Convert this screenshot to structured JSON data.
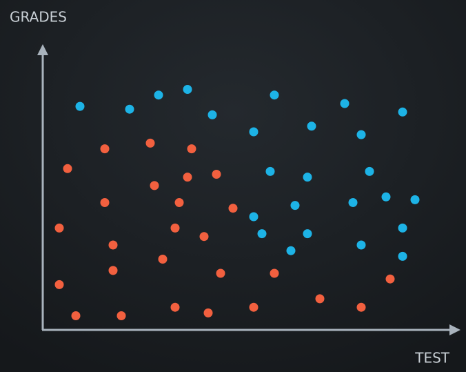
{
  "chart_data": {
    "type": "scatter",
    "xlabel": "TEST",
    "ylabel": "GRADES",
    "xlim": [
      0,
      10
    ],
    "ylim": [
      0,
      10
    ],
    "grid": false,
    "series": [
      {
        "color": "#1db3e6",
        "x": [
          0.9,
          2.1,
          2.8,
          3.5,
          4.1,
          5.6,
          5.1,
          6.5,
          7.3,
          8.7,
          7.7,
          5.5,
          6.4,
          7.9,
          6.1,
          7.5,
          8.3,
          9.0,
          5.1,
          5.3,
          6.4,
          6.0,
          7.7,
          8.7,
          8.7
        ],
        "values": [
          7.9,
          7.8,
          8.3,
          8.5,
          7.6,
          8.3,
          7.0,
          7.2,
          8.0,
          7.7,
          6.9,
          5.6,
          5.4,
          5.6,
          4.4,
          4.5,
          4.7,
          4.6,
          4.0,
          3.4,
          3.4,
          2.8,
          3.0,
          3.6,
          2.6
        ]
      },
      {
        "color": "#f2603f",
        "x": [
          0.6,
          1.5,
          2.6,
          3.6,
          2.7,
          3.5,
          4.2,
          1.5,
          3.3,
          4.6,
          0.4,
          3.2,
          3.9,
          1.7,
          2.9,
          1.7,
          4.3,
          5.6,
          0.4,
          8.4,
          6.7,
          0.8,
          1.9,
          3.2,
          4.0,
          5.1,
          7.7
        ],
        "values": [
          5.7,
          6.4,
          6.6,
          6.4,
          5.1,
          5.4,
          5.5,
          4.5,
          4.5,
          4.3,
          3.6,
          3.6,
          3.3,
          3.0,
          2.5,
          2.1,
          2.0,
          2.0,
          1.6,
          1.8,
          1.1,
          0.5,
          0.5,
          0.8,
          0.6,
          0.8,
          0.8
        ]
      }
    ]
  }
}
